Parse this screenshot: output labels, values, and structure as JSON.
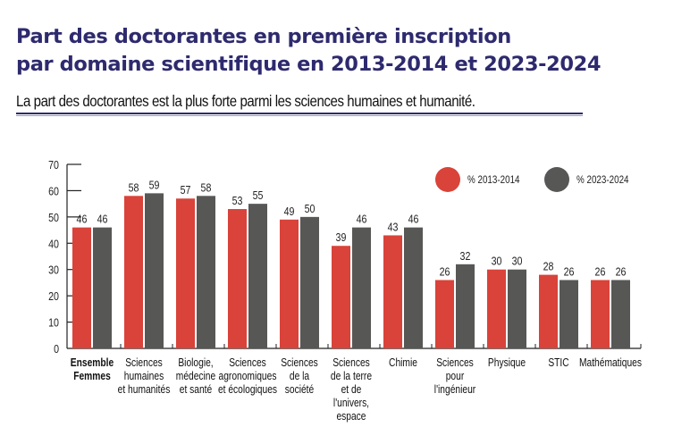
{
  "header": {
    "title_line1": "Part des doctorantes en première inscription",
    "title_line2": "par domaine scientifique en 2013-2014 et 2023-2024",
    "subtitle": "La part des doctorantes est la plus forte parmi les sciences humaines et humanité."
  },
  "colors": {
    "series_2013": "#d9433a",
    "series_2023": "#575756",
    "title": "#2e2a6e"
  },
  "chart_data": {
    "type": "bar",
    "title": "Part des doctorantes en première inscription par domaine scientifique en 2013-2014 et 2023-2024",
    "xlabel": "",
    "ylabel": "",
    "ylim": [
      0,
      70
    ],
    "yticks": [
      0,
      10,
      20,
      30,
      40,
      50,
      60,
      70
    ],
    "grid": false,
    "legend_position": "top-right",
    "categories": [
      [
        "Ensemble",
        "Femmes"
      ],
      [
        "Sciences",
        "humaines",
        "et humanités"
      ],
      [
        "Biologie,",
        "médecine",
        "et santé"
      ],
      [
        "Sciences",
        "agronomiques",
        "et écologiques"
      ],
      [
        "Sciences",
        "de la",
        "société"
      ],
      [
        "Sciences",
        "de la terre",
        "et de",
        "l'univers,",
        "espace"
      ],
      [
        "Chimie"
      ],
      [
        "Sciences",
        "pour",
        "l'ingénieur"
      ],
      [
        "Physique"
      ],
      [
        "STIC"
      ],
      [
        "Mathématiques"
      ]
    ],
    "bold_categories": [
      0
    ],
    "series": [
      {
        "name": "% 2013-2014",
        "values": [
          46,
          58,
          57,
          53,
          49,
          39,
          43,
          26,
          30,
          28,
          26
        ]
      },
      {
        "name": "% 2023-2024",
        "values": [
          46,
          59,
          58,
          55,
          50,
          46,
          46,
          32,
          30,
          26,
          26
        ]
      }
    ]
  }
}
